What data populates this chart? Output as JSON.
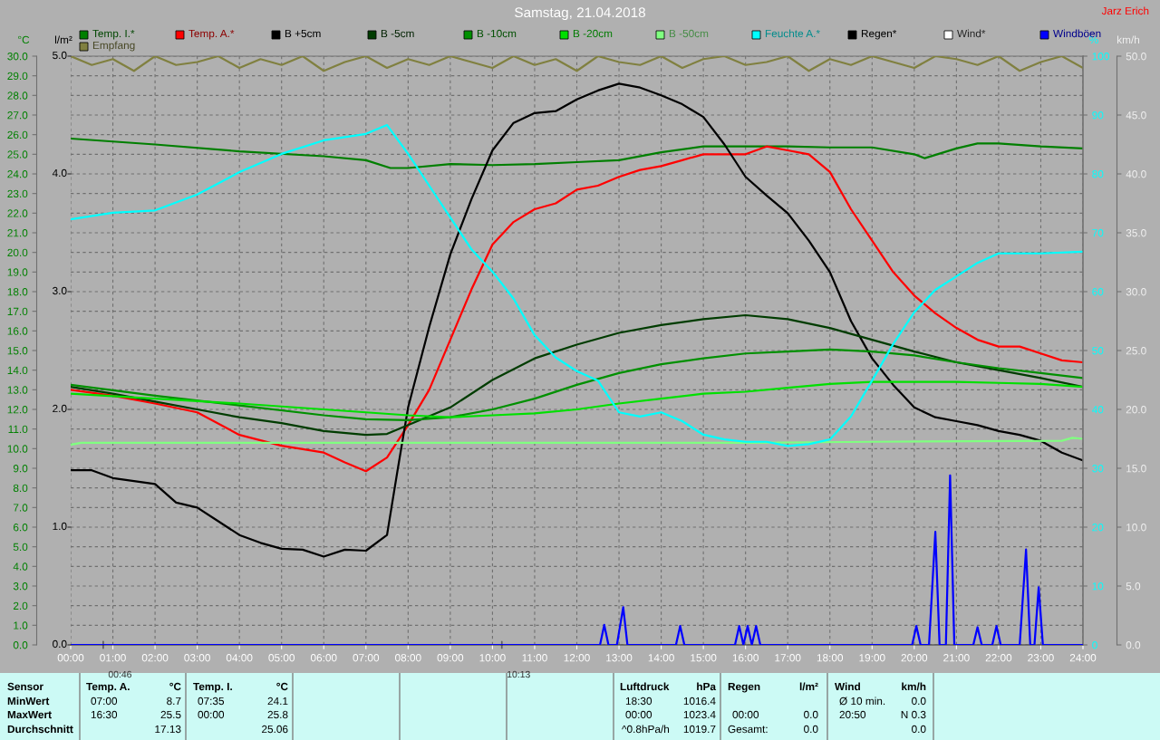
{
  "chart_data": {
    "type": "line",
    "title": "Samstag, 21.04.2018",
    "ylabel": "°C",
    "y2label": "%",
    "y3label": "km/h",
    "xlim": [
      0,
      24
    ],
    "xticks": [
      {
        "value": 0,
        "label": "00:00"
      },
      {
        "value": 1,
        "label": "01:00"
      },
      {
        "value": 2,
        "label": "02:00"
      },
      {
        "value": 3,
        "label": "03:00"
      },
      {
        "value": 4,
        "label": "04:00"
      },
      {
        "value": 5,
        "label": "05:00"
      },
      {
        "value": 6,
        "label": "06:00"
      },
      {
        "value": 7,
        "label": "07:00"
      },
      {
        "value": 8,
        "label": "08:00"
      },
      {
        "value": 9,
        "label": "09:00"
      },
      {
        "value": 10,
        "label": "10:00"
      },
      {
        "value": 11,
        "label": "11:00"
      },
      {
        "value": 12,
        "label": "12:00"
      },
      {
        "value": 13,
        "label": "13:00"
      },
      {
        "value": 14,
        "label": "14:00"
      },
      {
        "value": 15,
        "label": "15:00"
      },
      {
        "value": 16,
        "label": "16:00"
      },
      {
        "value": 17,
        "label": "17:00"
      },
      {
        "value": 18,
        "label": "18:00"
      },
      {
        "value": 19,
        "label": "19:00"
      },
      {
        "value": 20,
        "label": "20:00"
      },
      {
        "value": 21,
        "label": "21:00"
      },
      {
        "value": 22,
        "label": "22:00"
      },
      {
        "value": 23,
        "label": "23:00"
      },
      {
        "value": 24,
        "label": "24:00"
      }
    ],
    "ylim": [
      0,
      30
    ],
    "yticks": [
      {
        "value": 0,
        "label": "0.0"
      },
      {
        "value": 1,
        "label": "1.0"
      },
      {
        "value": 2,
        "label": "2.0"
      },
      {
        "value": 3,
        "label": "3.0"
      },
      {
        "value": 4,
        "label": "4.0"
      },
      {
        "value": 5,
        "label": "5.0"
      },
      {
        "value": 6,
        "label": "6.0"
      },
      {
        "value": 7,
        "label": "7.0"
      },
      {
        "value": 8,
        "label": "8.0"
      },
      {
        "value": 9,
        "label": "9.0"
      },
      {
        "value": 10,
        "label": "10.0"
      },
      {
        "value": 11,
        "label": "11.0"
      },
      {
        "value": 12,
        "label": "12.0"
      },
      {
        "value": 13,
        "label": "13.0"
      },
      {
        "value": 14,
        "label": "14.0"
      },
      {
        "value": 15,
        "label": "15.0"
      },
      {
        "value": 16,
        "label": "16.0"
      },
      {
        "value": 17,
        "label": "17.0"
      },
      {
        "value": 18,
        "label": "18.0"
      },
      {
        "value": 19,
        "label": "19.0"
      },
      {
        "value": 20,
        "label": "20.0"
      },
      {
        "value": 21,
        "label": "21.0"
      },
      {
        "value": 22,
        "label": "22.0"
      },
      {
        "value": 23,
        "label": "23.0"
      },
      {
        "value": 24,
        "label": "24.0"
      },
      {
        "value": 25,
        "label": "25.0"
      },
      {
        "value": 26,
        "label": "26.0"
      },
      {
        "value": 27,
        "label": "27.0"
      },
      {
        "value": 28,
        "label": "28.0"
      },
      {
        "value": 29,
        "label": "29.0"
      },
      {
        "value": 30,
        "label": "30.0"
      }
    ],
    "y2lim": [
      0,
      100
    ],
    "y2ticks": [
      0,
      10,
      20,
      30,
      40,
      50,
      60,
      70,
      80,
      90,
      100
    ],
    "y3lim": [
      0,
      50
    ],
    "y3ticks": [
      {
        "value": 0,
        "label": "0.0"
      },
      {
        "value": 5,
        "label": "5.0"
      },
      {
        "value": 10,
        "label": "10.0"
      },
      {
        "value": 15,
        "label": "15.0"
      },
      {
        "value": 20,
        "label": "20.0"
      },
      {
        "value": 25,
        "label": "25.0"
      },
      {
        "value": 30,
        "label": "30.0"
      },
      {
        "value": 35,
        "label": "35.0"
      },
      {
        "value": 40,
        "label": "40.0"
      },
      {
        "value": 45,
        "label": "45.0"
      },
      {
        "value": 50,
        "label": "50.0"
      }
    ],
    "grid": true,
    "legend": "top",
    "marker": "none",
    "line_style": "solid",
    "series": [
      {
        "name": "Temp. I.*",
        "color": "#007f00",
        "x": [
          0,
          2,
          4,
          6,
          7,
          7.58,
          8,
          9,
          10,
          11,
          12,
          13,
          14,
          15,
          16,
          17,
          18,
          19,
          20,
          20.25,
          21,
          21.5,
          22,
          23,
          24
        ],
        "values": [
          25.8,
          25.5,
          25.15,
          24.9,
          24.7,
          24.3,
          24.3,
          24.5,
          24.45,
          24.5,
          24.6,
          24.7,
          25.1,
          25.4,
          25.4,
          25.4,
          25.35,
          25.35,
          25.0,
          24.8,
          25.3,
          25.55,
          25.55,
          25.4,
          25.3
        ]
      },
      {
        "name": "Temp. A.*",
        "color": "#ff0000",
        "x": [
          0,
          1,
          2,
          3,
          4,
          5,
          6,
          6.5,
          7,
          7.5,
          8,
          8.5,
          9,
          9.5,
          10,
          10.5,
          11,
          11.5,
          12,
          12.5,
          13,
          13.5,
          14,
          14.5,
          15,
          15.5,
          16,
          16.5,
          17,
          17.5,
          18,
          18.5,
          19,
          19.5,
          20,
          20.5,
          21,
          21.5,
          22,
          22.5,
          23,
          23.5,
          24
        ],
        "values": [
          13.0,
          12.7,
          12.3,
          11.85,
          10.7,
          10.15,
          9.8,
          9.3,
          8.85,
          9.55,
          11.2,
          13.0,
          15.55,
          18.1,
          20.4,
          21.55,
          22.2,
          22.5,
          23.2,
          23.4,
          23.85,
          24.2,
          24.4,
          24.7,
          25.0,
          25.0,
          25.0,
          25.4,
          25.2,
          25.0,
          24.1,
          22.2,
          20.6,
          19.0,
          17.8,
          16.9,
          16.15,
          15.55,
          15.2,
          15.2,
          14.85,
          14.5,
          14.4
        ]
      },
      {
        "name": "B +5cm",
        "color": "#000000",
        "x": [
          0,
          0.5,
          1,
          2,
          2.5,
          3,
          3.5,
          4,
          4.5,
          5,
          5.5,
          6,
          6.5,
          7,
          7.5,
          7.75,
          8,
          8.5,
          9,
          9.5,
          10,
          10.5,
          11,
          11.5,
          12,
          12.5,
          13,
          13.5,
          14,
          14.5,
          15,
          15.5,
          16,
          16.5,
          17,
          17.5,
          18,
          18.5,
          19,
          19.5,
          20,
          20.5,
          21,
          21.5,
          22,
          22.5,
          23,
          23.5,
          24
        ],
        "values": [
          8.9,
          8.9,
          8.5,
          8.2,
          7.25,
          7.0,
          6.3,
          5.6,
          5.2,
          4.9,
          4.85,
          4.5,
          4.85,
          4.8,
          5.6,
          8.9,
          12.1,
          16.2,
          19.9,
          22.7,
          25.2,
          26.6,
          27.1,
          27.2,
          27.8,
          28.25,
          28.6,
          28.4,
          28.0,
          27.55,
          26.9,
          25.5,
          23.85,
          22.9,
          22.0,
          20.6,
          19.0,
          16.5,
          14.6,
          13.25,
          12.1,
          11.6,
          11.4,
          11.2,
          10.9,
          10.7,
          10.4,
          9.8,
          9.4
        ]
      },
      {
        "name": "B -5cm",
        "color": "#003c00",
        "x": [
          0,
          1,
          2,
          3,
          4,
          5,
          6,
          7,
          7.5,
          8,
          9,
          10,
          11,
          12,
          13,
          14,
          15,
          16,
          17,
          18,
          19,
          20,
          21,
          22,
          23,
          24
        ],
        "values": [
          13.15,
          12.8,
          12.4,
          12.0,
          11.6,
          11.3,
          10.9,
          10.7,
          10.75,
          11.2,
          12.1,
          13.5,
          14.6,
          15.3,
          15.9,
          16.3,
          16.6,
          16.8,
          16.6,
          16.15,
          15.55,
          14.95,
          14.4,
          14.0,
          13.6,
          13.15
        ]
      },
      {
        "name": "B -10cm",
        "color": "#009000",
        "x": [
          0,
          2,
          4,
          6,
          7,
          8,
          9,
          10,
          11,
          12,
          13,
          14,
          15,
          16,
          17,
          18,
          19,
          20,
          21,
          22,
          23,
          24
        ],
        "values": [
          13.25,
          12.7,
          12.2,
          11.7,
          11.5,
          11.45,
          11.6,
          12.0,
          12.55,
          13.25,
          13.85,
          14.3,
          14.6,
          14.85,
          14.95,
          15.05,
          14.95,
          14.75,
          14.4,
          14.1,
          13.85,
          13.6
        ]
      },
      {
        "name": "B -20cm",
        "color": "#00e000",
        "x": [
          0,
          2,
          4,
          6,
          8,
          9,
          10,
          11,
          12,
          13,
          14,
          15,
          16,
          17,
          18,
          19,
          20,
          21,
          22,
          23,
          24
        ],
        "values": [
          12.8,
          12.55,
          12.3,
          12.0,
          11.7,
          11.6,
          11.7,
          11.8,
          12.0,
          12.3,
          12.55,
          12.8,
          12.9,
          13.1,
          13.3,
          13.4,
          13.4,
          13.4,
          13.35,
          13.3,
          13.15
        ]
      },
      {
        "name": "B -50cm",
        "color": "#80ff80",
        "x": [
          0,
          0.25,
          4,
          8,
          12,
          16,
          19,
          23.5,
          23.75,
          24
        ],
        "values": [
          10.2,
          10.3,
          10.3,
          10.3,
          10.3,
          10.3,
          10.35,
          10.4,
          10.55,
          10.5
        ]
      },
      {
        "name": "Feuchte A.*",
        "color": "#00ffff",
        "axis": "y2",
        "x": [
          0,
          1,
          2,
          3,
          4,
          5,
          6,
          7,
          7.5,
          8,
          8.5,
          9,
          9.5,
          10,
          10.5,
          11,
          11.5,
          12,
          12.5,
          13,
          13.5,
          14,
          14.5,
          15,
          15.5,
          16,
          16.5,
          17,
          17.5,
          18,
          18.5,
          19,
          19.5,
          20,
          20.5,
          21,
          21.5,
          22,
          22.5,
          23,
          24
        ],
        "values": [
          72.3,
          73.4,
          73.8,
          76.5,
          80.3,
          83.4,
          85.7,
          86.8,
          88.3,
          83.4,
          78.0,
          72.6,
          67.2,
          63.4,
          58.8,
          52.6,
          48.8,
          46.5,
          44.9,
          39.5,
          38.8,
          39.5,
          38.0,
          35.7,
          34.9,
          34.5,
          34.5,
          33.8,
          34.1,
          34.9,
          38.8,
          44.9,
          51.1,
          56.5,
          60.3,
          62.6,
          64.9,
          66.5,
          66.5,
          66.5,
          66.8
        ]
      },
      {
        "name": "Regen*",
        "color": "#000000"
      },
      {
        "name": "Wind*",
        "color": "#ffffff",
        "axis": "y3"
      },
      {
        "name": "Windböen",
        "color": "#0000ff",
        "axis": "y3",
        "x": [
          0,
          12.55,
          12.65,
          12.75,
          12.95,
          13.1,
          13.2,
          14.35,
          14.45,
          14.55,
          15.75,
          15.85,
          15.95,
          16.05,
          16.15,
          16.25,
          16.35,
          19.95,
          20.05,
          20.15,
          20.35,
          20.5,
          20.6,
          20.75,
          20.85,
          20.95,
          21.4,
          21.5,
          21.6,
          21.85,
          21.95,
          22.05,
          22.5,
          22.65,
          22.75,
          22.85,
          22.95,
          23.05,
          24
        ],
        "values": [
          0,
          0,
          1.7,
          0,
          0,
          3.2,
          0,
          0,
          1.6,
          0,
          0,
          1.6,
          0,
          1.6,
          0,
          1.6,
          0,
          0,
          1.6,
          0,
          0,
          9.6,
          0,
          0,
          14.4,
          0,
          0,
          1.5,
          0,
          0,
          1.6,
          0,
          0,
          8.1,
          0,
          0,
          4.9,
          0,
          0
        ]
      },
      {
        "name": "Empfang",
        "color": "#808040",
        "axis": "y2",
        "x": [
          0,
          0.5,
          1,
          1.5,
          2,
          2.5,
          3,
          3.5,
          4,
          4.5,
          5,
          5.5,
          6,
          6.5,
          7,
          7.5,
          8,
          8.5,
          9,
          9.5,
          10,
          10.5,
          11,
          11.5,
          12,
          12.5,
          13,
          13.5,
          14,
          14.5,
          15,
          15.5,
          16,
          16.5,
          17,
          17.5,
          18,
          18.5,
          19,
          19.5,
          20,
          20.5,
          21,
          21.5,
          22,
          22.5,
          23,
          23.5,
          24
        ],
        "values": [
          100,
          98.5,
          99.5,
          97.5,
          100,
          98.5,
          99,
          100,
          98,
          99.5,
          98.5,
          100,
          97.5,
          99,
          100,
          98,
          99.5,
          98.5,
          100,
          99,
          98,
          100,
          98.5,
          99.5,
          97.5,
          100,
          99,
          98.5,
          100,
          98,
          99.5,
          100,
          98.5,
          99,
          100,
          97.5,
          99.5,
          98.5,
          100,
          99,
          98,
          100,
          99.5,
          98.5,
          100,
          97.5,
          99,
          100,
          98
        ]
      }
    ],
    "annotations": [
      "Jarz Erich",
      {
        "text": "00:46",
        "x": 0.77,
        "y": 0
      },
      {
        "text": "10:13",
        "x": 10.22,
        "y": 0
      },
      "l/m²",
      "0.0",
      "1.0",
      "2.0",
      "3.0",
      "4.0",
      "5.0",
      "Sensor",
      "MinWert",
      "MaxWert",
      "Durchschnitt",
      "Temp. A.",
      "°C",
      "07:00",
      "8.7",
      "16:30",
      "25.5",
      "17.13",
      "Temp. I.",
      "°C",
      "07:35",
      "24.1",
      "00:00",
      "25.8",
      "25.06",
      "Luftdruck",
      "hPa",
      "18:30",
      "1016.4",
      "00:00",
      "1023.4",
      "^0.8hPa/h",
      "1019.7",
      "Regen",
      "l/m²",
      "00:00",
      "0.0",
      "Gesamt:",
      "0.0",
      "Wind",
      "km/h",
      "Ø 10 min.",
      "0.0",
      "20:50",
      "N 0.3",
      "0.0"
    ]
  }
}
